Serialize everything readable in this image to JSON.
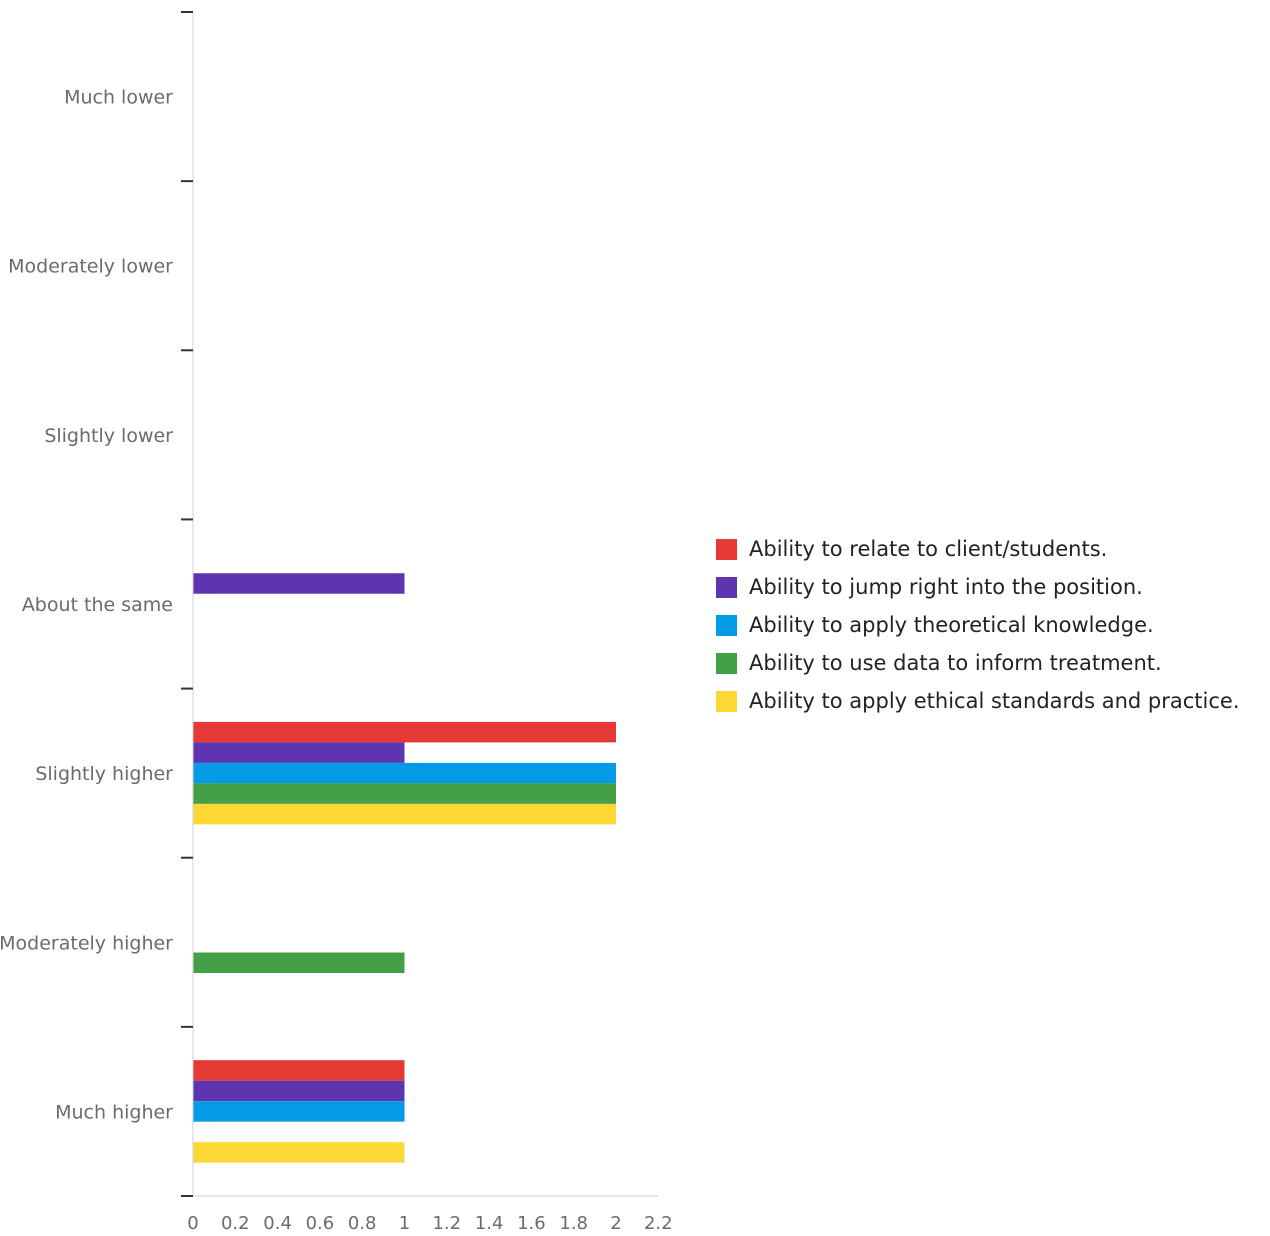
{
  "chart_data": {
    "type": "bar",
    "orientation": "horizontal",
    "title": "",
    "xlabel": "",
    "ylabel": "",
    "categories": [
      "Much lower",
      "Moderately lower",
      "Slightly lower",
      "About the same",
      "Slightly higher",
      "Moderately higher",
      "Much higher"
    ],
    "xlim": [
      0,
      2.2
    ],
    "x_ticks": [
      "0",
      "0.2",
      "0.4",
      "0.6",
      "0.8",
      "1",
      "1.2",
      "1.4",
      "1.6",
      "1.8",
      "2",
      "2.2"
    ],
    "grid": false,
    "legend_position": "right",
    "series": [
      {
        "name": "Ability to relate to client/students.",
        "color": "#e53935",
        "values": [
          0,
          0,
          0,
          0,
          2,
          0,
          1
        ]
      },
      {
        "name": "Ability to jump right into the position.",
        "color": "#5e35b1",
        "values": [
          0,
          0,
          0,
          1,
          1,
          0,
          1
        ]
      },
      {
        "name": "Ability to apply theoretical knowledge.",
        "color": "#039be5",
        "values": [
          0,
          0,
          0,
          0,
          2,
          0,
          1
        ]
      },
      {
        "name": "Ability to use data to inform treatment.",
        "color": "#43a047",
        "values": [
          0,
          0,
          0,
          0,
          2,
          1,
          0
        ]
      },
      {
        "name": "Ability to apply ethical standards and practice.",
        "color": "#fdd835",
        "values": [
          0,
          0,
          0,
          0,
          2,
          0,
          1
        ]
      }
    ]
  }
}
